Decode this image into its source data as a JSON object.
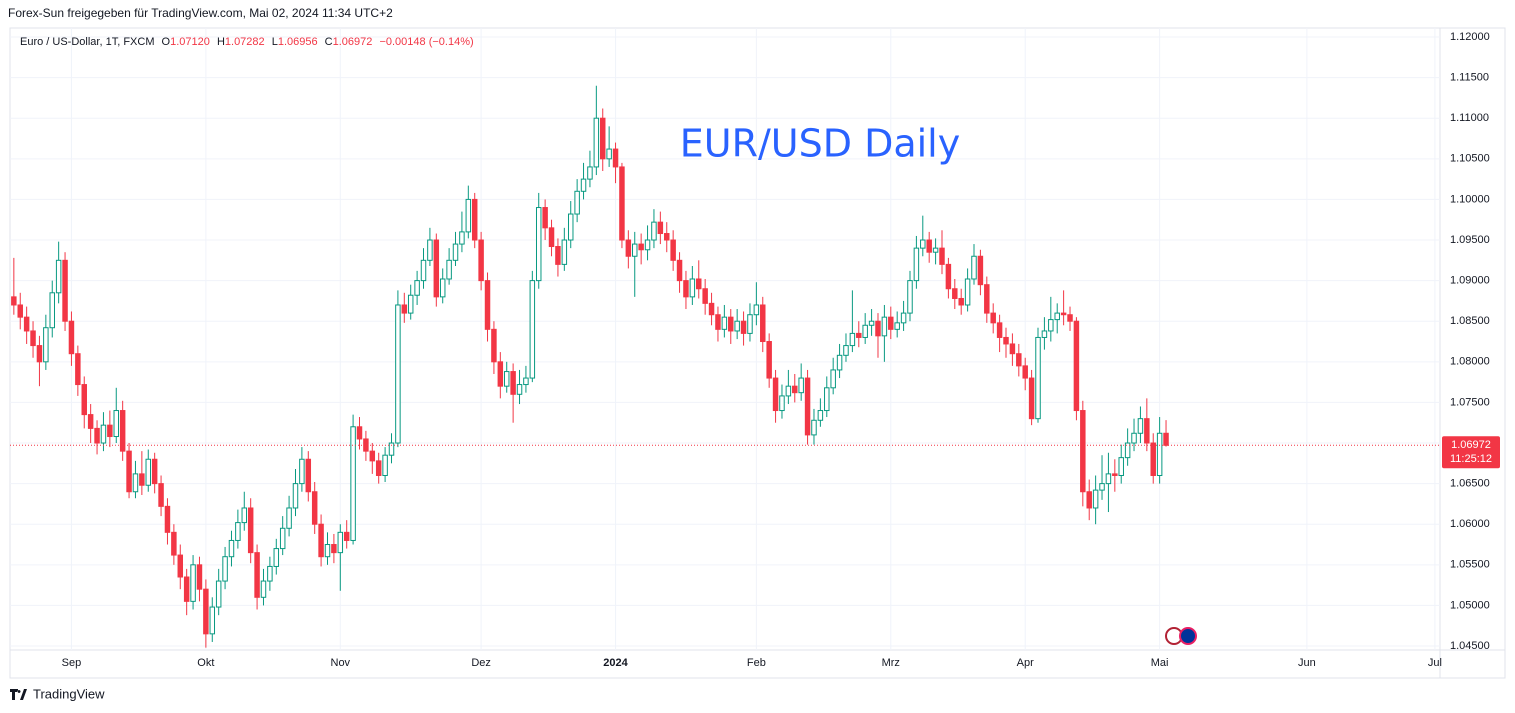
{
  "chart_data": {
    "type": "candlestick",
    "title": "EUR/USD Daily",
    "source": "Forex-Sun freigegeben für TradingView.com, Mai 02, 2024 11:34 UTC+2",
    "symbol": "Euro / US-Dollar, 1T, FXCM",
    "ohlc_labels": {
      "o": "O",
      "h": "H",
      "l": "L",
      "c": "C"
    },
    "ohlc_values": {
      "o": "1.07120",
      "h": "1.07282",
      "l": "1.06956",
      "c": "1.06972"
    },
    "change": "−0.00148 (−0.14%)",
    "last_price_label": "1.06972",
    "countdown": "11:25:12",
    "brand": "TradingView",
    "up_color": "#089981",
    "down_color": "#f23645",
    "grid": true,
    "open": [
      1.088,
      1.087,
      1.0855,
      1.0838,
      1.082,
      1.08,
      1.0842,
      1.0885,
      1.0925,
      1.085,
      1.081,
      1.0772,
      1.0735,
      1.0718,
      1.07,
      1.0722,
      1.0708,
      1.074,
      1.069,
      1.064,
      1.0662,
      1.0648,
      1.068,
      1.065,
      1.0622,
      1.059,
      1.0562,
      1.0535,
      1.0505,
      1.055,
      1.052,
      1.0465,
      1.0498,
      1.053,
      1.056,
      1.058,
      1.0602,
      1.062,
      1.0565,
      1.051,
      1.053,
      1.0548,
      1.057,
      1.0595,
      1.062,
      1.065,
      1.068,
      1.064,
      1.06,
      1.056,
      1.0575,
      1.0565,
      1.059,
      1.058,
      1.072,
      1.0705,
      1.069,
      1.0678,
      1.066,
      1.0685,
      1.07,
      1.087,
      1.086,
      1.0882,
      1.09,
      1.0925,
      1.095,
      1.088,
      1.0902,
      1.0925,
      1.0945,
      1.096,
      1.1,
      1.095,
      1.09,
      1.084,
      1.08,
      1.077,
      1.0788,
      1.076,
      1.0772,
      1.078,
      1.09,
      1.099,
      1.0965,
      1.0942,
      1.092,
      1.095,
      1.0982,
      1.101,
      1.1025,
      1.104,
      1.11,
      1.105,
      1.1062,
      1.104,
      1.095,
      1.093,
      1.0945,
      1.0938,
      1.095,
      1.0972,
      1.0958,
      1.095,
      1.0925,
      1.09,
      1.088,
      1.0902,
      1.089,
      1.0872,
      1.0858,
      1.084,
      1.0855,
      1.0838,
      1.085,
      1.0835,
      1.0858,
      1.087,
      1.0825,
      1.078,
      1.074,
      1.0758,
      1.077,
      1.0762,
      1.078,
      1.071,
      1.0728,
      1.074,
      1.0768,
      1.079,
      1.0808,
      1.082,
      1.0835,
      1.083,
      1.0845,
      1.085,
      1.0832,
      1.0855,
      1.084,
      1.0848,
      1.086,
      1.09,
      1.094,
      1.095,
      1.0935,
      1.094,
      1.092,
      1.089,
      1.0878,
      1.087,
      1.0902,
      1.093,
      1.0895,
      1.086,
      1.0848,
      1.083,
      1.0822,
      1.081,
      1.0795,
      1.078,
      1.073,
      1.083,
      1.0838,
      1.0852,
      1.086,
      1.0858,
      1.085,
      1.074,
      1.064,
      1.062,
      1.0642,
      1.065,
      1.0662,
      1.066,
      1.0682,
      1.07,
      1.0712,
      1.073,
      1.07,
      1.066,
      1.0712
    ],
    "high": [
      1.0928,
      1.0885,
      1.0868,
      1.085,
      1.0832,
      1.0858,
      1.09,
      1.0948,
      1.0935,
      1.0862,
      1.082,
      1.0782,
      1.0748,
      1.0728,
      1.0738,
      1.074,
      1.0768,
      1.0752,
      1.07,
      1.0678,
      1.069,
      1.0692,
      1.0688,
      1.066,
      1.0632,
      1.06,
      1.0575,
      1.0545,
      1.0562,
      1.056,
      1.0532,
      1.051,
      1.0545,
      1.0572,
      1.0592,
      1.0618,
      1.064,
      1.0632,
      1.0575,
      1.0545,
      1.056,
      1.0582,
      1.061,
      1.0635,
      1.0668,
      1.0695,
      1.069,
      1.0652,
      1.0612,
      1.059,
      1.0588,
      1.06,
      1.0605,
      1.0735,
      1.0732,
      1.0715,
      1.07,
      1.0688,
      1.0695,
      1.0712,
      1.0888,
      1.0885,
      1.0895,
      1.0912,
      1.094,
      1.0965,
      1.0958,
      1.0915,
      1.094,
      1.096,
      1.0985,
      1.1017,
      1.1008,
      1.096,
      1.091,
      1.085,
      1.0812,
      1.08,
      1.0798,
      1.079,
      1.0795,
      1.0912,
      1.1008,
      1.1,
      1.0975,
      1.0952,
      1.0965,
      1.0998,
      1.1025,
      1.1045,
      1.106,
      1.114,
      1.1112,
      1.109,
      1.107,
      1.1045,
      1.0962,
      1.096,
      1.0958,
      1.0968,
      1.0988,
      1.0985,
      1.0972,
      1.0962,
      1.0935,
      1.0912,
      1.0918,
      1.0925,
      1.0902,
      1.0885,
      1.0868,
      1.087,
      1.0865,
      1.0865,
      1.0862,
      1.0872,
      1.0898,
      1.088,
      1.0835,
      1.079,
      1.0772,
      1.079,
      1.0785,
      1.0798,
      1.079,
      1.0742,
      1.0755,
      1.0782,
      1.0805,
      1.0822,
      1.0835,
      1.0888,
      1.085,
      1.086,
      1.0865,
      1.086,
      1.087,
      1.0868,
      1.0862,
      1.0875,
      1.0912,
      1.0955,
      1.098,
      1.096,
      1.0952,
      1.0962,
      1.0928,
      1.0902,
      1.089,
      1.0915,
      1.0945,
      1.0938,
      1.0905,
      1.0872,
      1.0858,
      1.0842,
      1.0835,
      1.0822,
      1.0805,
      1.079,
      1.0842,
      1.0855,
      1.088,
      1.0872,
      1.0888,
      1.0868,
      1.0855,
      1.0752,
      1.0655,
      1.066,
      1.0685,
      1.0688,
      1.068,
      1.0698,
      1.0718,
      1.073,
      1.0745,
      1.0755,
      1.0712,
      1.0732,
      1.07282
    ],
    "low": [
      1.0858,
      1.084,
      1.0822,
      1.0805,
      1.077,
      1.079,
      1.083,
      1.0872,
      1.0838,
      1.0795,
      1.0758,
      1.0718,
      1.07,
      1.0686,
      1.069,
      1.0695,
      1.07,
      1.0678,
      1.0632,
      1.0632,
      1.0636,
      1.064,
      1.0638,
      1.061,
      1.0575,
      1.055,
      1.052,
      1.0488,
      1.0495,
      1.0505,
      1.0448,
      1.0455,
      1.0488,
      1.052,
      1.0548,
      1.057,
      1.0592,
      1.0552,
      1.0495,
      1.05,
      1.0518,
      1.0538,
      1.0562,
      1.0585,
      1.061,
      1.064,
      1.0628,
      1.0588,
      1.0548,
      1.055,
      1.0552,
      1.0518,
      1.057,
      1.0575,
      1.0692,
      1.0678,
      1.0662,
      1.065,
      1.0652,
      1.0675,
      1.0695,
      1.0848,
      1.0852,
      1.087,
      1.089,
      1.0918,
      1.0868,
      1.0872,
      1.0895,
      1.0918,
      1.0935,
      1.0952,
      1.094,
      1.0888,
      1.0825,
      1.0785,
      1.0755,
      1.0762,
      1.0725,
      1.0748,
      1.0762,
      1.0775,
      1.089,
      1.095,
      1.093,
      1.0905,
      1.0912,
      1.094,
      1.0972,
      1.1,
      1.1015,
      1.103,
      1.1035,
      1.104,
      1.102,
      1.094,
      1.0915,
      1.088,
      1.092,
      1.0925,
      1.094,
      1.0945,
      1.0935,
      1.0912,
      1.0885,
      1.0865,
      1.087,
      1.0878,
      1.0858,
      1.0845,
      1.0825,
      1.083,
      1.0822,
      1.0828,
      1.082,
      1.0825,
      1.0845,
      1.0812,
      1.0768,
      1.0725,
      1.073,
      1.0748,
      1.075,
      1.0752,
      1.0698,
      1.0698,
      1.072,
      1.0732,
      1.076,
      1.078,
      1.08,
      1.0812,
      1.0818,
      1.0822,
      1.0832,
      1.0805,
      1.08,
      1.0828,
      1.083,
      1.0838,
      1.085,
      1.089,
      1.093,
      1.0922,
      1.092,
      1.0908,
      1.0878,
      1.0865,
      1.0858,
      1.0862,
      1.0895,
      1.0882,
      1.0848,
      1.0835,
      1.0812,
      1.0805,
      1.0795,
      1.0782,
      1.0765,
      1.0722,
      1.0725,
      1.0815,
      1.0825,
      1.0835,
      1.0845,
      1.0838,
      1.0728,
      1.0622,
      1.0605,
      1.06,
      1.063,
      1.0615,
      1.064,
      1.065,
      1.0672,
      1.069,
      1.07,
      1.069,
      1.065,
      1.065,
      1.06956
    ],
    "close": [
      1.087,
      1.0855,
      1.0838,
      1.082,
      1.08,
      1.0842,
      1.0885,
      1.0925,
      1.085,
      1.081,
      1.0772,
      1.0735,
      1.0718,
      1.07,
      1.0722,
      1.0708,
      1.074,
      1.069,
      1.064,
      1.0662,
      1.0648,
      1.068,
      1.065,
      1.0622,
      1.059,
      1.0562,
      1.0535,
      1.0505,
      1.055,
      1.052,
      1.0465,
      1.0498,
      1.053,
      1.056,
      1.058,
      1.0602,
      1.062,
      1.0565,
      1.051,
      1.053,
      1.0548,
      1.057,
      1.0595,
      1.062,
      1.065,
      1.068,
      1.064,
      1.06,
      1.056,
      1.0575,
      1.0565,
      1.059,
      1.058,
      1.072,
      1.0705,
      1.069,
      1.0678,
      1.066,
      1.0685,
      1.07,
      1.087,
      1.086,
      1.0882,
      1.09,
      1.0925,
      1.095,
      1.088,
      1.0902,
      1.0925,
      1.0945,
      1.096,
      1.1,
      1.095,
      1.09,
      1.084,
      1.08,
      1.077,
      1.0788,
      1.076,
      1.0772,
      1.078,
      1.09,
      1.099,
      1.0965,
      1.0942,
      1.092,
      1.095,
      1.0982,
      1.101,
      1.1025,
      1.104,
      1.11,
      1.105,
      1.1062,
      1.104,
      1.095,
      1.093,
      1.0945,
      1.0938,
      1.095,
      1.0972,
      1.0958,
      1.095,
      1.0925,
      1.09,
      1.088,
      1.0902,
      1.089,
      1.0872,
      1.0858,
      1.084,
      1.0855,
      1.0838,
      1.085,
      1.0835,
      1.0858,
      1.087,
      1.0825,
      1.078,
      1.074,
      1.0758,
      1.077,
      1.0762,
      1.078,
      1.071,
      1.0728,
      1.074,
      1.0768,
      1.079,
      1.0808,
      1.082,
      1.0835,
      1.083,
      1.0845,
      1.085,
      1.0832,
      1.0855,
      1.084,
      1.0848,
      1.086,
      1.09,
      1.094,
      1.095,
      1.0935,
      1.094,
      1.092,
      1.089,
      1.0878,
      1.087,
      1.0902,
      1.093,
      1.0895,
      1.086,
      1.0848,
      1.083,
      1.0822,
      1.081,
      1.0795,
      1.078,
      1.073,
      1.083,
      1.0838,
      1.0852,
      1.086,
      1.0858,
      1.085,
      1.074,
      1.064,
      1.062,
      1.0642,
      1.065,
      1.0662,
      1.066,
      1.0682,
      1.07,
      1.0712,
      1.073,
      1.07,
      1.066,
      1.0712,
      1.06972
    ],
    "xlim": [
      -0.6,
      222.8
    ],
    "xticks": [
      {
        "value": 9,
        "label": "Sep"
      },
      {
        "value": 30,
        "label": "Okt"
      },
      {
        "value": 51,
        "label": "Nov"
      },
      {
        "value": 73,
        "label": "Dez"
      },
      {
        "value": 94,
        "label": "2024"
      },
      {
        "value": 116,
        "label": "Feb"
      },
      {
        "value": 137,
        "label": "Mrz"
      },
      {
        "value": 158,
        "label": "Apr"
      },
      {
        "value": 179,
        "label": "Mai"
      },
      {
        "value": 202,
        "label": "Jun"
      },
      {
        "value": 222,
        "label": "Jul"
      }
    ],
    "ylim": [
      1.04451,
      1.12111
    ],
    "yticks": [
      {
        "value": 1.045,
        "label": "1.04500"
      },
      {
        "value": 1.05,
        "label": "1.05000"
      },
      {
        "value": 1.055,
        "label": "1.05500"
      },
      {
        "value": 1.06,
        "label": "1.06000"
      },
      {
        "value": 1.065,
        "label": "1.06500"
      },
      {
        "value": 1.07,
        "label": "1.07000"
      },
      {
        "value": 1.075,
        "label": "1.07500"
      },
      {
        "value": 1.08,
        "label": "1.08000"
      },
      {
        "value": 1.085,
        "label": "1.08500"
      },
      {
        "value": 1.09,
        "label": "1.09000"
      },
      {
        "value": 1.095,
        "label": "1.09500"
      },
      {
        "value": 1.1,
        "label": "1.10000"
      },
      {
        "value": 1.105,
        "label": "1.10500"
      },
      {
        "value": 1.11,
        "label": "1.11000"
      },
      {
        "value": 1.115,
        "label": "1.11500"
      },
      {
        "value": 1.12,
        "label": "1.12000"
      }
    ]
  }
}
